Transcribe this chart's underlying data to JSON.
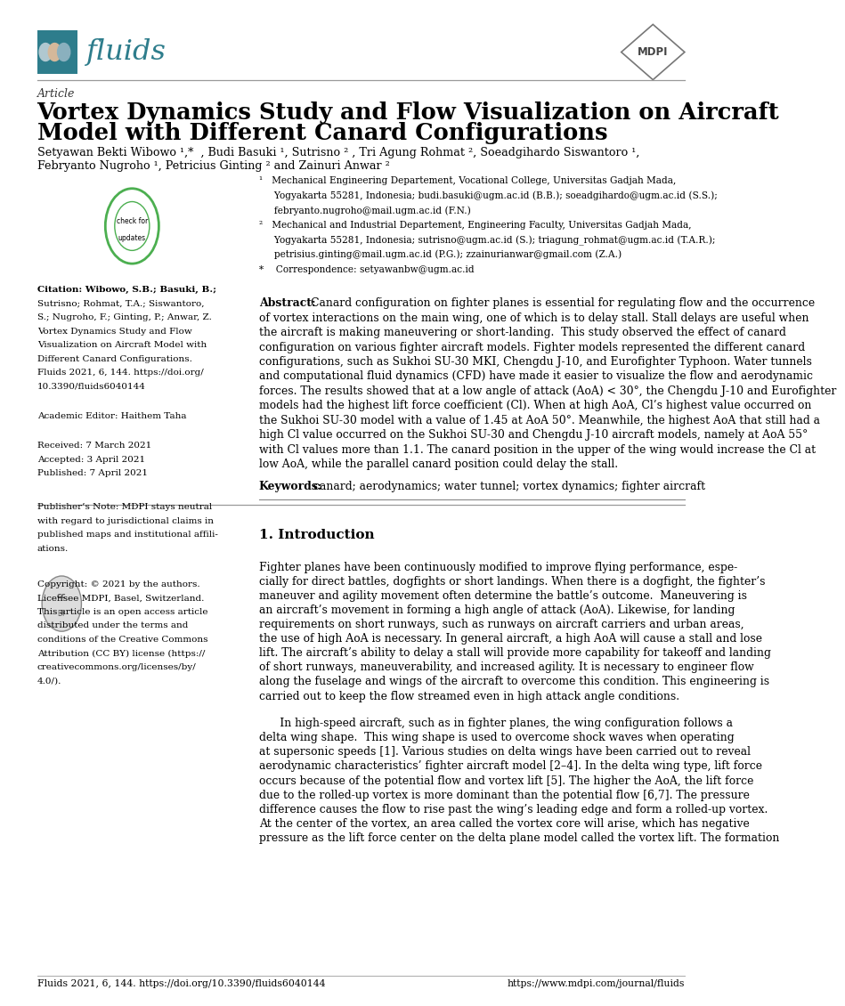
{
  "page_width": 10.2,
  "page_height": 14.42,
  "bg_color": "#ffffff",
  "journal_name": "fluids",
  "journal_color": "#2e7d8c",
  "journal_box_color": "#2e7d8c",
  "article_label": "Article",
  "title_line1": "Vortex Dynamics Study and Flow Visualization on Aircraft",
  "title_line2": "Model with Different Canard Configurations",
  "authors_line1": "Setyawan Bekti Wibowo ¹,*  , Budi Basuki ¹, Sutrisno ² , Tri Agung Rohmat ², Soeadgihardo Siswantoro ¹,",
  "authors_line2": "Febryanto Nugroho ¹, Petricius Ginting ² and Zainuri Anwar ²",
  "affil1": "¹   Mechanical Engineering Departement, Vocational College, Universitas Gadjah Mada,",
  "affil1b": "     Yogyakarta 55281, Indonesia; budi.basuki@ugm.ac.id (B.B.); soeadgihardo@ugm.ac.id (S.S.);",
  "affil1c": "     febryanto.nugroho@mail.ugm.ac.id (F.N.)",
  "affil2": "²   Mechanical and Industrial Departement, Engineering Faculty, Universitas Gadjah Mada,",
  "affil2b": "     Yogyakarta 55281, Indonesia; sutrisno@ugm.ac.id (S.); triagung_rohmat@ugm.ac.id (T.A.R.);",
  "affil2c": "     petrisius.ginting@mail.ugm.ac.id (P.G.); zzainurianwar@gmail.com (Z.A.)",
  "affil3": "*    Correspondence: setyawanbw@ugm.ac.id",
  "abstract_label": "Abstract:",
  "keywords_label": "Keywords:",
  "keywords_text": "canard; aerodynamics; water tunnel; vortex dynamics; fighter aircraft",
  "academic_editor": "Academic Editor: Haithem Taha",
  "received": "Received: 7 March 2021",
  "accepted": "Accepted: 3 April 2021",
  "published": "Published: 7 April 2021",
  "section1_title": "1. Introduction",
  "footer_citation": "Fluids 2021, 6, 144. https://doi.org/10.3390/fluids6040144",
  "footer_url": "https://www.mdpi.com/journal/fluids",
  "text_color": "#000000",
  "gray_color": "#555555",
  "cite_lines": [
    "Citation: Wibowo, S.B.; Basuki, B.;",
    "Sutrisno; Rohmat, T.A.; Siswantoro,",
    "S.; Nugroho, F.; Ginting, P.; Anwar, Z.",
    "Vortex Dynamics Study and Flow",
    "Visualization on Aircraft Model with",
    "Different Canard Configurations.",
    "Fluids 2021, 6, 144. https://doi.org/",
    "10.3390/fluids6040144"
  ],
  "pub_note_lines": [
    "Publisher’s Note: MDPI stays neutral",
    "with regard to jurisdictional claims in",
    "published maps and institutional affili-",
    "ations."
  ],
  "copy_lines": [
    "Copyright: © 2021 by the authors.",
    "Licensee MDPI, Basel, Switzerland.",
    "This article is an open access article",
    "distributed under the terms and",
    "conditions of the Creative Commons",
    "Attribution (CC BY) license (https://",
    "creativecommons.org/licenses/by/",
    "4.0/)."
  ],
  "abstract_lines": [
    "of vortex interactions on the main wing, one of which is to delay stall. Stall delays are useful when",
    "the aircraft is making maneuvering or short-landing.  This study observed the effect of canard",
    "configuration on various fighter aircraft models. Fighter models represented the different canard",
    "configurations, such as Sukhoi SU-30 MKI, Chengdu J-10, and Eurofighter Typhoon. Water tunnels",
    "and computational fluid dynamics (CFD) have made it easier to visualize the flow and aerodynamic",
    "forces. The results showed that at a low angle of attack (AoA) < 30°, the Chengdu J-10 and Eurofighter",
    "models had the highest lift force coefficient (Cl). When at high AoA, Cl’s highest value occurred on",
    "the Sukhoi SU-30 model with a value of 1.45 at AoA 50°. Meanwhile, the highest AoA that still had a",
    "high Cl value occurred on the Sukhoi SU-30 and Chengdu J-10 aircraft models, namely at AoA 55°",
    "with Cl values more than 1.1. The canard position in the upper of the wing would increase the Cl at",
    "low AoA, while the parallel canard position could delay the stall."
  ],
  "intro1_lines": [
    "Fighter planes have been continuously modified to improve flying performance, espe-",
    "cially for direct battles, dogfights or short landings. When there is a dogfight, the fighter’s",
    "maneuver and agility movement often determine the battle’s outcome.  Maneuvering is",
    "an aircraft’s movement in forming a high angle of attack (AoA). Likewise, for landing",
    "requirements on short runways, such as runways on aircraft carriers and urban areas,",
    "the use of high AoA is necessary. In general aircraft, a high AoA will cause a stall and lose",
    "lift. The aircraft’s ability to delay a stall will provide more capability for takeoff and landing",
    "of short runways, maneuverability, and increased agility. It is necessary to engineer flow",
    "along the fuselage and wings of the aircraft to overcome this condition. This engineering is",
    "carried out to keep the flow streamed even in high attack angle conditions."
  ],
  "intro2_lines": [
    "      In high-speed aircraft, such as in fighter planes, the wing configuration follows a",
    "delta wing shape.  This wing shape is used to overcome shock waves when operating",
    "at supersonic speeds [1]. Various studies on delta wings have been carried out to reveal",
    "aerodynamic characteristics’ fighter aircraft model [2–4]. In the delta wing type, lift force",
    "occurs because of the potential flow and vortex lift [5]. The higher the AoA, the lift force",
    "due to the rolled-up vortex is more dominant than the potential flow [6,7]. The pressure",
    "difference causes the flow to rise past the wing’s leading edge and form a rolled-up vortex.",
    "At the center of the vortex, an area called the vortex core will arise, which has negative",
    "pressure as the lift force center on the delta plane model called the vortex lift. The formation"
  ]
}
